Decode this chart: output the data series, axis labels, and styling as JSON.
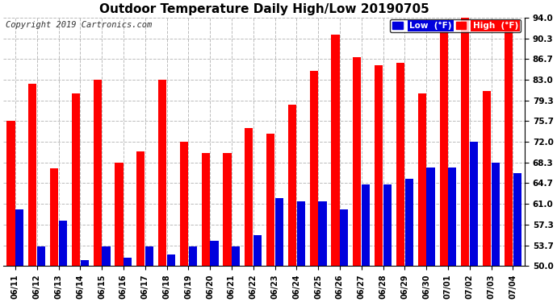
{
  "title": "Outdoor Temperature Daily High/Low 20190705",
  "copyright": "Copyright 2019 Cartronics.com",
  "dates": [
    "06/11",
    "06/12",
    "06/13",
    "06/14",
    "06/15",
    "06/16",
    "06/17",
    "06/18",
    "06/19",
    "06/20",
    "06/21",
    "06/22",
    "06/23",
    "06/24",
    "06/25",
    "06/26",
    "06/27",
    "06/28",
    "06/29",
    "06/30",
    "07/01",
    "07/02",
    "07/03",
    "07/04"
  ],
  "highs": [
    75.7,
    82.3,
    67.3,
    80.5,
    83.0,
    68.3,
    70.3,
    83.0,
    72.0,
    70.0,
    70.0,
    74.5,
    73.5,
    78.5,
    84.5,
    91.0,
    87.0,
    85.5,
    86.0,
    80.5,
    91.5,
    94.0,
    81.0,
    93.5
  ],
  "lows": [
    60.0,
    53.5,
    58.0,
    51.0,
    53.5,
    51.5,
    53.5,
    52.0,
    53.5,
    54.5,
    53.5,
    55.5,
    62.0,
    61.5,
    61.5,
    60.0,
    64.5,
    64.5,
    65.5,
    67.5,
    67.5,
    72.0,
    68.3,
    66.5
  ],
  "high_color": "#ff0000",
  "low_color": "#0000dd",
  "background_color": "#ffffff",
  "grid_color": "#bbbbbb",
  "ylim_min": 50.0,
  "ylim_max": 94.0,
  "yticks": [
    50.0,
    53.7,
    57.3,
    61.0,
    64.7,
    68.3,
    72.0,
    75.7,
    79.3,
    83.0,
    86.7,
    90.3,
    94.0
  ],
  "title_fontsize": 11,
  "copyright_fontsize": 7.5,
  "legend_label_low": "Low  (°F)",
  "legend_label_high": "High  (°F)"
}
